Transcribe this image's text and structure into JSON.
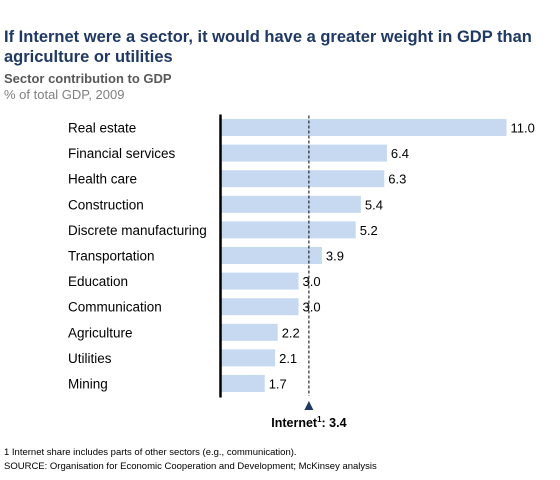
{
  "header": {
    "title": "If Internet were a sector, it would have a greater weight in GDP than agriculture or utilities",
    "subtitle": "Sector contribution to GDP",
    "unit": "% of total GDP, 2009"
  },
  "chart_data": {
    "type": "bar",
    "orientation": "horizontal",
    "categories": [
      "Real estate",
      "Financial services",
      "Health care",
      "Construction",
      "Discrete manufacturing",
      "Transportation",
      "Education",
      "Communication",
      "Agriculture",
      "Utilities",
      "Mining"
    ],
    "values": [
      11.0,
      6.4,
      6.3,
      5.4,
      5.2,
      3.9,
      3.0,
      3.0,
      2.2,
      2.1,
      1.7
    ],
    "value_labels": [
      "11.0",
      "6.4",
      "6.3",
      "5.4",
      "5.2",
      "3.9",
      "3.0",
      "3.0",
      "2.2",
      "2.1",
      "1.7"
    ],
    "xlim": [
      0,
      11.0
    ],
    "grid": false,
    "bar_color": "#c6d9f1",
    "axis_color": "#000000",
    "reference_line": {
      "label": "Internet",
      "footnote_marker": "1",
      "value": 3.4,
      "value_label": "3.4"
    }
  },
  "footer": {
    "footnote": "1 Internet share includes parts of other sectors (e.g., communication).",
    "source": "SOURCE: Organisation for Economic Cooperation and Development; McKinsey analysis"
  }
}
